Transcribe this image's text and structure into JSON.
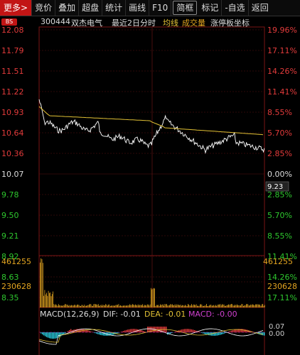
{
  "toolbar": {
    "items": [
      "更多>",
      "竞价",
      "叠加",
      "超盘",
      "统计",
      "画线",
      "F10",
      "简框",
      "标记",
      "-自选",
      "返回"
    ]
  },
  "header": {
    "bs_badge": "BS",
    "code": "300444",
    "name": "双杰电气",
    "period": "最近2日分时",
    "avg_label": "均线",
    "vol_label": "成交量",
    "extra": "涨停板坐标"
  },
  "price_axis": {
    "left": [
      "12.08",
      "11.79",
      "11.51",
      "11.22",
      "10.93",
      "10.64",
      "10.36",
      "10.07",
      "9.78",
      "9.50",
      "9.21",
      "8.92",
      "8.63",
      "8.35"
    ],
    "right": [
      "19.96%",
      "17.11%",
      "14.26%",
      "11.41%",
      "8.55%",
      "5.70%",
      "2.85%",
      "0.00%",
      "2.85%",
      "5.70%",
      "8.55%",
      "11.41%",
      "14.26%",
      "17.11%"
    ],
    "current_price": "9.23"
  },
  "volume_axis": {
    "top": "461255",
    "mid": "230628"
  },
  "macd": {
    "title": "MACD(12,26,9)",
    "dif": "DIF: -0.01",
    "dea": "DEA: -0.01",
    "macd_val": "MACD: -0.00",
    "right_top": "0.07",
    "right_mid": "0.00",
    "right_bot": "-0.00"
  },
  "colors": {
    "up": "#e33b3b",
    "down": "#2ec72e",
    "price_line": "#ffffff",
    "avg_line": "#e3c235",
    "volume": "#e3a520",
    "macd_neg": "#2bd4e8"
  }
}
